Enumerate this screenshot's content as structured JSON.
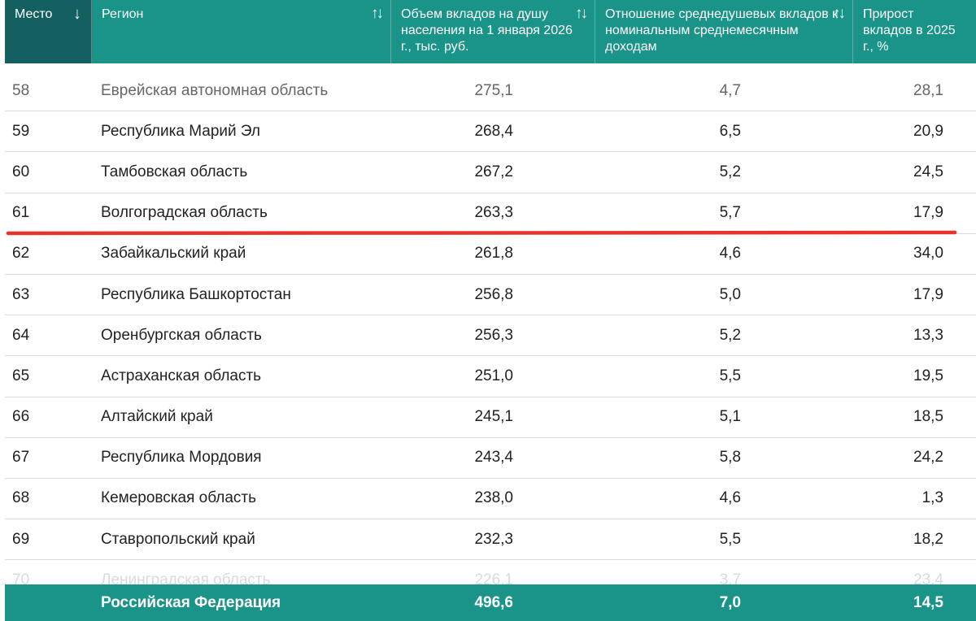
{
  "table": {
    "columns": [
      {
        "label": "Место",
        "sort_icon": "arrow-down-icon",
        "sort_glyph": "↓"
      },
      {
        "label": "Регион",
        "sort_icon": "sort-updown-icon",
        "sort_glyph": "↑↓"
      },
      {
        "label": "Объем вкладов на душу населения на 1 января 2026 г., тыс. руб.",
        "sort_icon": "sort-updown-icon",
        "sort_glyph": "↑↓"
      },
      {
        "label": "Отношение среднедушевых вкладов к номинальным среднемесячным доходам",
        "sort_icon": "sort-updown-icon",
        "sort_glyph": "↑↓"
      },
      {
        "label": "Прирост вкладов в 2025 г., %"
      }
    ],
    "rows": [
      {
        "rank": "58",
        "region": "Еврейская автономная область",
        "deposits": "275,1",
        "ratio": "4,7",
        "growth": "28,1"
      },
      {
        "rank": "59",
        "region": "Республика Марий Эл",
        "deposits": "268,4",
        "ratio": "6,5",
        "growth": "20,9"
      },
      {
        "rank": "60",
        "region": "Тамбовская область",
        "deposits": "267,2",
        "ratio": "5,2",
        "growth": "24,5"
      },
      {
        "rank": "61",
        "region": "Волгоградская область",
        "deposits": "263,3",
        "ratio": "5,7",
        "growth": "17,9"
      },
      {
        "rank": "62",
        "region": "Забайкальский край",
        "deposits": "261,8",
        "ratio": "4,6",
        "growth": "34,0"
      },
      {
        "rank": "63",
        "region": "Республика Башкортостан",
        "deposits": "256,8",
        "ratio": "5,0",
        "growth": "17,9"
      },
      {
        "rank": "64",
        "region": "Оренбургская область",
        "deposits": "256,3",
        "ratio": "5,2",
        "growth": "13,3"
      },
      {
        "rank": "65",
        "region": "Астраханская область",
        "deposits": "251,0",
        "ratio": "5,5",
        "growth": "19,5"
      },
      {
        "rank": "66",
        "region": "Алтайский край",
        "deposits": "245,1",
        "ratio": "5,1",
        "growth": "18,5"
      },
      {
        "rank": "67",
        "region": "Республика Мордовия",
        "deposits": "243,4",
        "ratio": "5,8",
        "growth": "24,2"
      },
      {
        "rank": "68",
        "region": "Кемеровская область",
        "deposits": "238,0",
        "ratio": "4,6",
        "growth": "1,3"
      },
      {
        "rank": "69",
        "region": "Ставропольский край",
        "deposits": "232,3",
        "ratio": "5,5",
        "growth": "18,2"
      },
      {
        "rank": "70",
        "region": "Ленинградская область",
        "deposits": "226,1",
        "ratio": "3,7",
        "growth": "23,4"
      }
    ],
    "footer": {
      "rank": "",
      "region": "Российская Федерация",
      "deposits": "496,6",
      "ratio": "7,0",
      "growth": "14,5"
    }
  },
  "colors": {
    "header_bg": "#1a9488",
    "sorted_header_bg": "#145f60",
    "highlight_line": "#e8322b"
  }
}
